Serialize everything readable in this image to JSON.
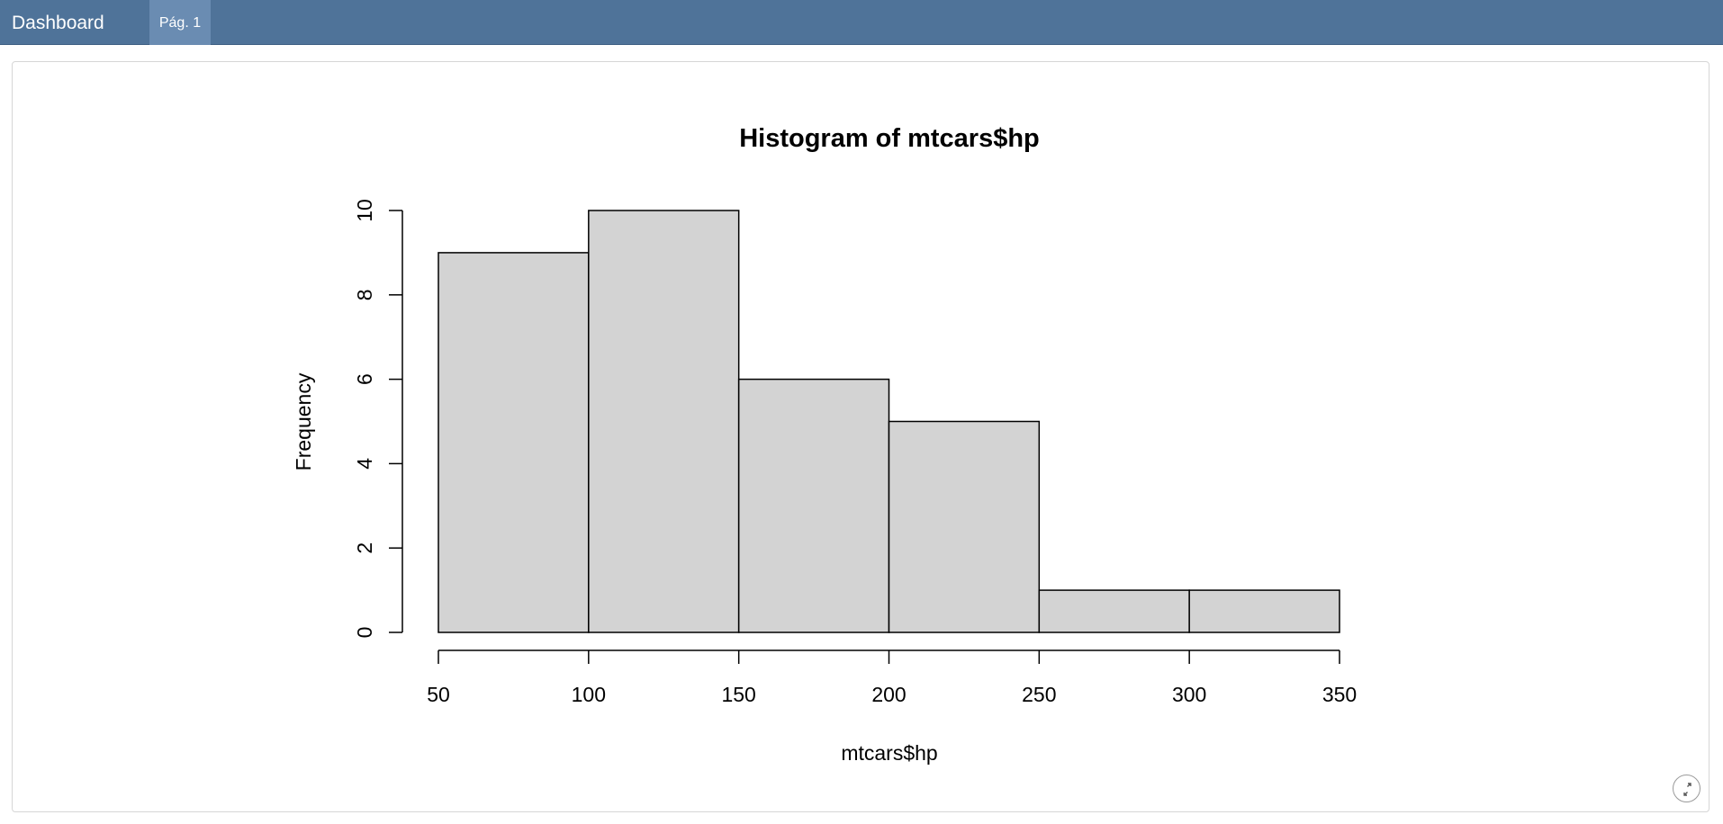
{
  "navbar": {
    "brand": "Dashboard",
    "tabs": [
      {
        "label": "Pág. 1",
        "active": true
      }
    ],
    "colors": {
      "background": "#4f7399",
      "active_tab": "#6a8cb2"
    }
  },
  "panel": {
    "expand_icon": "expand-icon"
  },
  "chart_data": {
    "type": "bar",
    "title": "Histogram of mtcars$hp",
    "xlabel": "mtcars$hp",
    "ylabel": "Frequency",
    "bins": [
      [
        50,
        100
      ],
      [
        100,
        150
      ],
      [
        150,
        200
      ],
      [
        200,
        250
      ],
      [
        250,
        300
      ],
      [
        300,
        350
      ]
    ],
    "values": [
      9,
      10,
      6,
      5,
      1,
      1
    ],
    "xticks": [
      50,
      100,
      150,
      200,
      250,
      300,
      350
    ],
    "yticks": [
      0,
      2,
      4,
      6,
      8,
      10
    ],
    "xlim": [
      50,
      350
    ],
    "ylim": [
      0,
      10
    ],
    "bar_color": "#d3d3d3",
    "grid": false
  }
}
